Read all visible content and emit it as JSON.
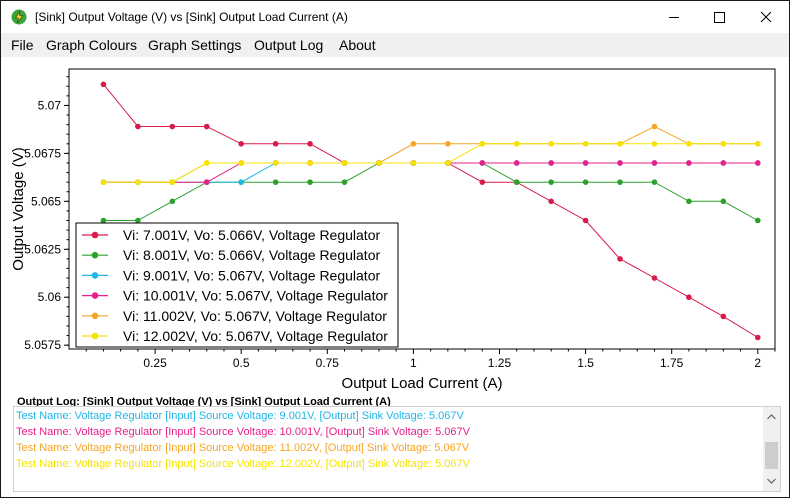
{
  "window": {
    "title": "[Sink] Output Voltage (V) vs [Sink] Output Load Current (A)"
  },
  "menu": {
    "items": [
      "File",
      "Graph Colours",
      "Graph Settings",
      "Output Log",
      "About"
    ]
  },
  "chart_data": {
    "type": "line",
    "title": "",
    "xlabel": "Output Load Current (A)",
    "ylabel": "Output Voltage (V)",
    "xlim": [
      0,
      2.05
    ],
    "ylim": [
      5.0573,
      5.0719
    ],
    "x_ticks": [
      "0.25",
      "0.5",
      "0.75",
      "1",
      "1.25",
      "1.5",
      "1.75",
      "2"
    ],
    "y_ticks": [
      "5.0575",
      "5.06",
      "5.0625",
      "5.065",
      "5.0675",
      "5.07"
    ],
    "x": [
      0.1,
      0.2,
      0.3,
      0.4,
      0.5,
      0.6,
      0.7,
      0.8,
      0.9,
      1.0,
      1.1,
      1.2,
      1.3,
      1.4,
      1.5,
      1.6,
      1.7,
      1.8,
      1.9,
      2.0
    ],
    "legend_position": "bottom-left",
    "series": [
      {
        "name": "Vi: 7.001V, Vo: 5.066V, Voltage Regulator",
        "color": "#d81b4a",
        "values": [
          5.0711,
          5.0689,
          5.0689,
          5.0689,
          5.068,
          5.068,
          5.068,
          5.067,
          5.067,
          5.067,
          5.067,
          5.066,
          5.066,
          5.065,
          5.064,
          5.062,
          5.061,
          5.06,
          5.059,
          5.0579
        ]
      },
      {
        "name": "Vi: 8.001V, Vo: 5.066V, Voltage Regulator",
        "color": "#2ca02c",
        "values": [
          5.064,
          5.064,
          5.065,
          5.066,
          5.066,
          5.066,
          5.066,
          5.066,
          5.067,
          5.067,
          5.067,
          5.067,
          5.066,
          5.066,
          5.066,
          5.066,
          5.066,
          5.065,
          5.065,
          5.064
        ]
      },
      {
        "name": "Vi: 9.001V, Vo: 5.067V, Voltage Regulator",
        "color": "#1fb6e8",
        "values": [
          5.066,
          5.066,
          5.066,
          5.066,
          5.066,
          5.067,
          5.067,
          5.067,
          5.067,
          5.067,
          5.067,
          5.067,
          5.067,
          5.067,
          5.067,
          5.067,
          5.067,
          5.067,
          5.067,
          5.067
        ]
      },
      {
        "name": "Vi: 10.001V, Vo: 5.067V, Voltage Regulator",
        "color": "#e8208a",
        "values": [
          5.066,
          5.066,
          5.066,
          5.066,
          5.067,
          5.067,
          5.067,
          5.067,
          5.067,
          5.067,
          5.067,
          5.067,
          5.067,
          5.067,
          5.067,
          5.067,
          5.067,
          5.067,
          5.067,
          5.067
        ]
      },
      {
        "name": "Vi: 11.002V, Vo: 5.067V, Voltage Regulator",
        "color": "#f5a623",
        "values": [
          5.066,
          5.066,
          5.066,
          5.067,
          5.067,
          5.067,
          5.067,
          5.067,
          5.067,
          5.068,
          5.068,
          5.068,
          5.068,
          5.068,
          5.068,
          5.068,
          5.0689,
          5.068,
          5.068,
          5.068
        ]
      },
      {
        "name": "Vi: 12.002V, Vo: 5.067V, Voltage Regulator",
        "color": "#f5e400",
        "values": [
          5.066,
          5.066,
          5.066,
          5.067,
          5.067,
          5.067,
          5.067,
          5.067,
          5.067,
          5.067,
          5.067,
          5.068,
          5.068,
          5.068,
          5.068,
          5.068,
          5.068,
          5.068,
          5.068,
          5.068
        ]
      }
    ]
  },
  "log": {
    "title": "Output Log: [Sink] Output Voltage (V) vs [Sink] Output Load Current (A)",
    "lines": [
      {
        "text": "Test Name: Voltage Regulator [Input] Source Voltage: 9.001V, [Output] Sink Voltage: 5.067V",
        "color": "#1fb6e8"
      },
      {
        "text": "Test Name: Voltage Regulator [Input] Source Voltage: 10.001V, [Output] Sink Voltage: 5.067V",
        "color": "#e8208a"
      },
      {
        "text": "Test Name: Voltage Regulator [Input] Source Voltage: 11.002V, [Output] Sink Voltage: 5.067V",
        "color": "#f5a623"
      },
      {
        "text": "Test Name: Voltage Regulator [Input] Source Voltage: 12.002V, [Output] Sink Voltage: 5.067V",
        "color": "#f5e400"
      }
    ]
  }
}
